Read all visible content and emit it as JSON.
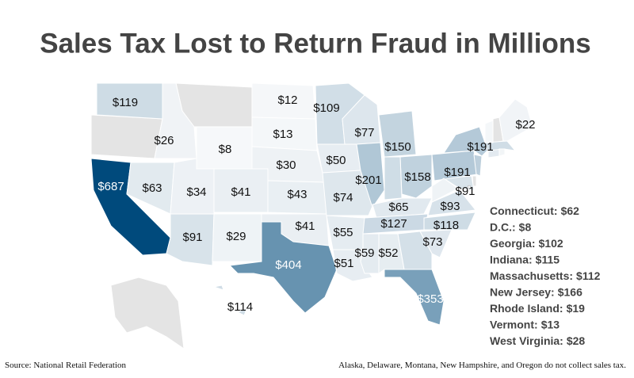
{
  "chart_data": {
    "type": "choropleth",
    "title": "Sales Tax Lost to Return Fraud in Millions",
    "source": "Source: National Retail Federation",
    "note": "Alaska, Delaware, Montana, New Hampshire, and Oregon do not collect sales tax.",
    "color_range": [
      "#f9fafb",
      "#004a7c"
    ],
    "no_data_color": "#e4e4e4",
    "regions": [
      {
        "value": 119,
        "value_label": "$119"
      },
      {
        "value": 687,
        "value_label": "$687"
      },
      {
        "value": 63,
        "value_label": "$63"
      },
      {
        "value": 26,
        "value_label": "$26"
      },
      {
        "value": 8,
        "value_label": "$8"
      },
      {
        "value": 34,
        "value_label": "$34"
      },
      {
        "value": 41,
        "value_label": "$41"
      },
      {
        "value": 91,
        "value_label": "$91"
      },
      {
        "value": 29,
        "value_label": "$29"
      },
      {
        "value": 12,
        "value_label": "$12"
      },
      {
        "value": 13,
        "value_label": "$13"
      },
      {
        "value": 30,
        "value_label": "$30"
      },
      {
        "value": 43,
        "value_label": "$43"
      },
      {
        "value": 41,
        "value_label": "$41"
      },
      {
        "value": 404,
        "value_label": "$404"
      },
      {
        "value": 109,
        "value_label": "$109"
      },
      {
        "value": 50,
        "value_label": "$50"
      },
      {
        "value": 74,
        "value_label": "$74"
      },
      {
        "value": 55,
        "value_label": "$55"
      },
      {
        "value": 51,
        "value_label": "$51"
      },
      {
        "value": 77,
        "value_label": "$77"
      },
      {
        "value": 201,
        "value_label": "$201"
      },
      {
        "value": 150,
        "value_label": "$150"
      },
      {
        "value": 158,
        "value_label": "$158"
      },
      {
        "value": 65,
        "value_label": "$65"
      },
      {
        "value": 127,
        "value_label": "$127"
      },
      {
        "value": 59,
        "value_label": "$59"
      },
      {
        "value": 52,
        "value_label": "$52"
      },
      {
        "value": 73,
        "value_label": "$73"
      },
      {
        "value": 353,
        "value_label": "$353"
      },
      {
        "value": 118,
        "value_label": "$118"
      },
      {
        "value": 93,
        "value_label": "$93"
      },
      {
        "value": 91,
        "value_label": "$91"
      },
      {
        "value": 191,
        "value_label": "$191"
      },
      {
        "value": 191,
        "value_label": "$191"
      },
      {
        "value": 22,
        "value_label": "$22"
      },
      {
        "value": 114,
        "value_label": "$114"
      }
    ],
    "legend_regions": [
      {
        "name": "Connecticut:",
        "value": 62,
        "value_label": "$62"
      },
      {
        "name": "D.C.:",
        "value": 8,
        "value_label": "$8"
      },
      {
        "name": "Georgia:",
        "value": 102,
        "value_label": "$102"
      },
      {
        "name": "Indiana:",
        "value": 115,
        "value_label": "$115"
      },
      {
        "name": "Massachusetts:",
        "value": 112,
        "value_label": "$112"
      },
      {
        "name": "New Jersey:",
        "value": 166,
        "value_label": "$166"
      },
      {
        "name": "Rhode Island:",
        "value": 19,
        "value_label": "$19"
      },
      {
        "name": "Vermont:",
        "value": 13,
        "value_label": "$13"
      },
      {
        "name": "West Virginia:",
        "value": 28,
        "value_label": "$28"
      }
    ]
  }
}
